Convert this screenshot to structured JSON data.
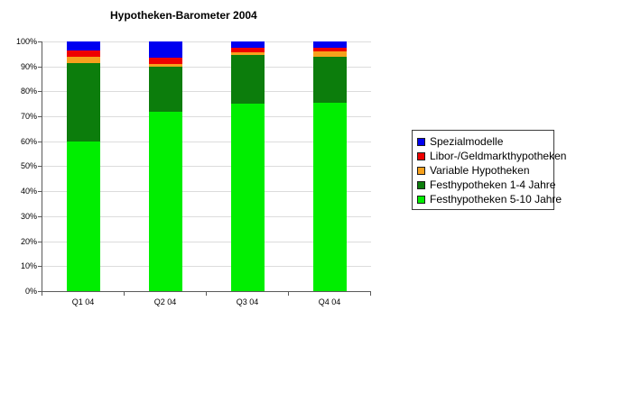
{
  "chart_data": {
    "type": "bar",
    "stacked": true,
    "title": "Hypotheken-Barometer 2004",
    "categories": [
      "Q1 04",
      "Q2 04",
      "Q3 04",
      "Q4 04"
    ],
    "series": [
      {
        "name": "Spezialmodelle",
        "color": "#0000f0",
        "values": [
          3.5,
          6.5,
          2.5,
          2.5
        ]
      },
      {
        "name": "Libor-/Geldmarkthypotheken",
        "color": "#ee0000",
        "values": [
          2.5,
          2.5,
          2.0,
          1.5
        ]
      },
      {
        "name": "Variable Hypotheken",
        "color": "#f7a11d",
        "values": [
          2.5,
          1.0,
          1.0,
          2.0
        ]
      },
      {
        "name": "Festhypotheken 1-4 Jahre",
        "color": "#0c7d0c",
        "values": [
          31.5,
          18.0,
          19.5,
          18.5
        ]
      },
      {
        "name": "Festhypotheken 5-10 Jahre",
        "color": "#00ee00",
        "values": [
          60.0,
          72.0,
          75.0,
          75.5
        ]
      }
    ],
    "stack_order_bottom_to_top": [
      "Festhypotheken 5-10 Jahre",
      "Festhypotheken 1-4 Jahre",
      "Variable Hypotheken",
      "Libor-/Geldmarkthypotheken",
      "Spezialmodelle"
    ],
    "xlabel": "",
    "ylabel": "",
    "ylim": [
      0,
      100
    ],
    "y_ticks": [
      "0%",
      "10%",
      "20%",
      "30%",
      "40%",
      "50%",
      "60%",
      "70%",
      "80%",
      "90%",
      "100%"
    ],
    "grid": true,
    "legend_position": "right",
    "colors": {
      "gridline": "#dcdcdc",
      "axis": "#5a5a5a",
      "background": "#ffffff",
      "text": "#000000"
    }
  }
}
